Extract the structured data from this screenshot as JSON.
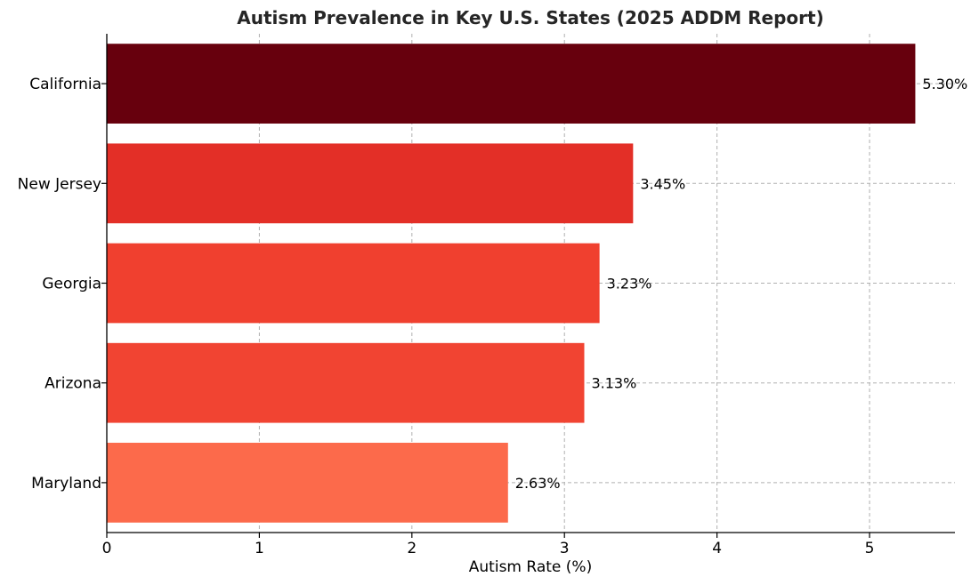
{
  "chart_data": {
    "type": "bar",
    "orientation": "horizontal",
    "title": "Autism Prevalence in Key U.S. States (2025 ADDM Report)",
    "xlabel": "Autism Rate (%)",
    "ylabel": "",
    "categories": [
      "California",
      "New Jersey",
      "Georgia",
      "Arizona",
      "Maryland"
    ],
    "values": [
      5.3,
      3.45,
      3.23,
      3.13,
      2.63
    ],
    "value_labels": [
      "5.30%",
      "3.45%",
      "3.23%",
      "3.13%",
      "2.63%"
    ],
    "colors": [
      "#67000d",
      "#e32f27",
      "#f0402f",
      "#f14432",
      "#fc6a4b"
    ],
    "xlim": [
      0,
      5.56
    ],
    "xticks": [
      0,
      1,
      2,
      3,
      4,
      5
    ],
    "xtick_labels": [
      "0",
      "1",
      "2",
      "3",
      "4",
      "5"
    ],
    "grid": true,
    "legend": "none"
  }
}
